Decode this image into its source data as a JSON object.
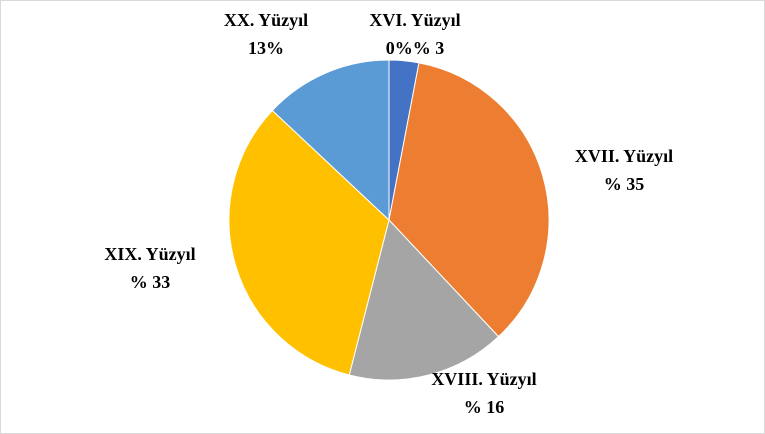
{
  "chart_data": {
    "type": "pie",
    "categories": [
      "XVI. Yüzyıl",
      "XVII. Yüzyıl",
      "XVIII. Yüzyıl",
      "XIX. Yüzyıl",
      "XX. Yüzyıl"
    ],
    "values": [
      3,
      35,
      16,
      33,
      13
    ],
    "value_labels": [
      "0%% 3",
      "% 35",
      "% 16",
      "% 33",
      "13%"
    ],
    "colors": [
      "#4472c4",
      "#ed7d31",
      "#a5a5a5",
      "#ffc000",
      "#5b9bd5"
    ]
  }
}
